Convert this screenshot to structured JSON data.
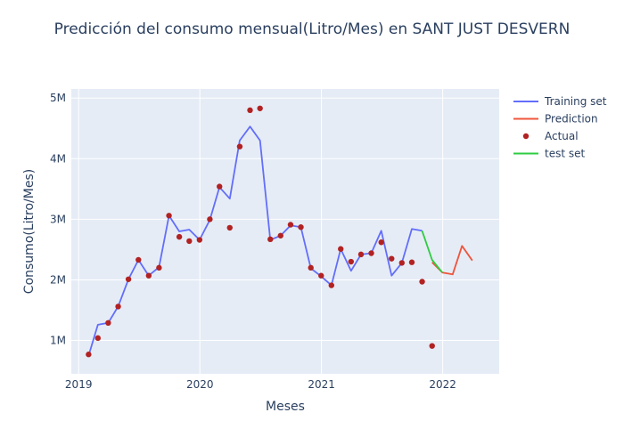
{
  "chart_data": {
    "type": "line",
    "title": "Predicción del consumo mensual(Litro/Mes) en SANT JUST DESVERN",
    "xlabel": "Meses",
    "ylabel": "Consumo(Litro/Mes)",
    "xlim": [
      "2018-12-10",
      "2022-06-20"
    ],
    "ylim": [
      450000,
      5150000
    ],
    "x_ticks": [
      {
        "value": "2019-01-01",
        "label": "2019"
      },
      {
        "value": "2020-01-01",
        "label": "2020"
      },
      {
        "value": "2021-01-01",
        "label": "2021"
      },
      {
        "value": "2022-01-01",
        "label": "2022"
      }
    ],
    "y_ticks": [
      {
        "value": 1000000,
        "label": "1M"
      },
      {
        "value": 2000000,
        "label": "2M"
      },
      {
        "value": 3000000,
        "label": "3M"
      },
      {
        "value": 4000000,
        "label": "4M"
      },
      {
        "value": 5000000,
        "label": "5M"
      }
    ],
    "grid": true,
    "legend_position": "top-right",
    "series": [
      {
        "name": "Training set",
        "kind": "line",
        "color": "#636efa",
        "x": [
          "2019-01-31",
          "2019-02-28",
          "2019-03-31",
          "2019-04-30",
          "2019-05-31",
          "2019-06-30",
          "2019-07-31",
          "2019-08-31",
          "2019-09-30",
          "2019-10-31",
          "2019-11-30",
          "2019-12-31",
          "2020-01-31",
          "2020-02-29",
          "2020-03-31",
          "2020-04-30",
          "2020-05-31",
          "2020-06-30",
          "2020-07-31",
          "2020-08-31",
          "2020-09-30",
          "2020-10-31",
          "2020-11-30",
          "2020-12-31",
          "2021-01-31",
          "2021-02-28",
          "2021-03-31",
          "2021-04-30",
          "2021-05-31",
          "2021-06-30",
          "2021-07-31",
          "2021-08-31",
          "2021-09-30",
          "2021-10-31"
        ],
        "y": [
          750000,
          1260000,
          1290000,
          1560000,
          2010000,
          2330000,
          2070000,
          2210000,
          3060000,
          2800000,
          2830000,
          2660000,
          2990000,
          3530000,
          3340000,
          4300000,
          4530000,
          4300000,
          2660000,
          2730000,
          2900000,
          2870000,
          2190000,
          2060000,
          1910000,
          2510000,
          2150000,
          2420000,
          2440000,
          2810000,
          2070000,
          2280000,
          2840000,
          2810000
        ]
      },
      {
        "name": "Prediction",
        "kind": "line",
        "color": "#ef553b",
        "x": [
          "2021-11-30",
          "2021-12-31",
          "2022-01-31",
          "2022-02-28",
          "2022-03-31"
        ],
        "y": [
          2290000,
          2120000,
          2090000,
          2560000,
          2320000
        ]
      },
      {
        "name": "Actual",
        "kind": "markers",
        "color": "#b22222",
        "x": [
          "2019-01-31",
          "2019-02-28",
          "2019-03-31",
          "2019-04-30",
          "2019-05-31",
          "2019-06-30",
          "2019-07-31",
          "2019-08-31",
          "2019-09-30",
          "2019-10-31",
          "2019-11-30",
          "2019-12-31",
          "2020-01-31",
          "2020-02-29",
          "2020-03-31",
          "2020-04-30",
          "2020-05-31",
          "2020-06-30",
          "2020-07-31",
          "2020-08-31",
          "2020-09-30",
          "2020-10-31",
          "2020-11-30",
          "2020-12-31",
          "2021-01-31",
          "2021-02-28",
          "2021-03-31",
          "2021-04-30",
          "2021-05-31",
          "2021-06-30",
          "2021-07-31",
          "2021-08-31",
          "2021-09-30",
          "2021-10-31",
          "2021-11-30"
        ],
        "y": [
          770000,
          1040000,
          1290000,
          1560000,
          2010000,
          2330000,
          2070000,
          2200000,
          3060000,
          2710000,
          2640000,
          2660000,
          3000000,
          3540000,
          2860000,
          4200000,
          4800000,
          4830000,
          2670000,
          2730000,
          2910000,
          2870000,
          2200000,
          2070000,
          1910000,
          2510000,
          2300000,
          2420000,
          2440000,
          2620000,
          2350000,
          2280000,
          2290000,
          1970000,
          910000
        ]
      },
      {
        "name": "test set",
        "kind": "line",
        "color": "#2ecc40",
        "x": [
          "2021-10-31",
          "2021-11-30",
          "2021-12-31"
        ],
        "y": [
          2810000,
          2330000,
          2120000
        ]
      }
    ]
  }
}
